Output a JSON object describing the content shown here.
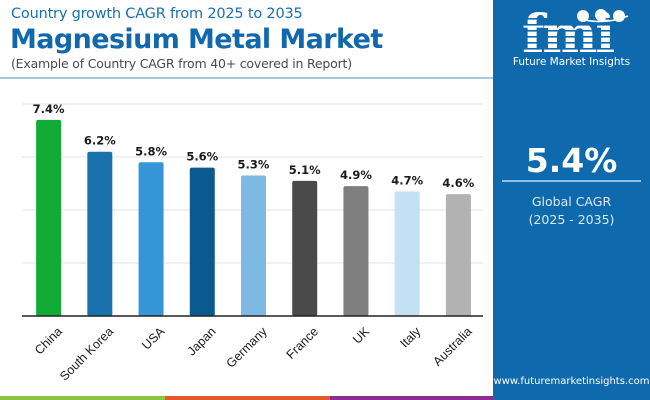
{
  "header": {
    "subtitle": "Country growth CAGR from 2025 to 2035",
    "title": "Magnesium Metal Market",
    "note": "(Example of Country CAGR from 40+ covered in Report)"
  },
  "brand": {
    "logo_letters": "fmi",
    "name": "Future Market Insights",
    "website": "www.futuremarketinsights.com",
    "panel_color": "#0f6aad"
  },
  "summary": {
    "value": "5.4%",
    "label_line1": "Global CAGR",
    "label_line2": "(2025 - 2035)"
  },
  "footer_colors": [
    "#8cc63f",
    "#e35a2b",
    "#8e2b8e"
  ],
  "chart_data": {
    "type": "bar",
    "title": "Magnesium Metal Market",
    "xlabel": "",
    "ylabel": "",
    "ylim": [
      0,
      8
    ],
    "grid": true,
    "gridlines": [
      2,
      4,
      6,
      8
    ],
    "categories": [
      "China",
      "South Korea",
      "USA",
      "Japan",
      "Germany",
      "France",
      "UK",
      "Italy",
      "Australia"
    ],
    "values": [
      7.4,
      6.2,
      5.8,
      5.6,
      5.3,
      5.1,
      4.9,
      4.7,
      4.6
    ],
    "value_labels": [
      "7.4%",
      "6.2%",
      "5.8%",
      "5.6%",
      "5.3%",
      "5.1%",
      "4.9%",
      "4.7%",
      "4.6%"
    ],
    "colors": [
      "#12ab35",
      "#1a72ad",
      "#3595d6",
      "#0b5a8f",
      "#7db9e2",
      "#4a4a4a",
      "#7f7f7f",
      "#c4e1f4",
      "#b2b2b2"
    ]
  }
}
